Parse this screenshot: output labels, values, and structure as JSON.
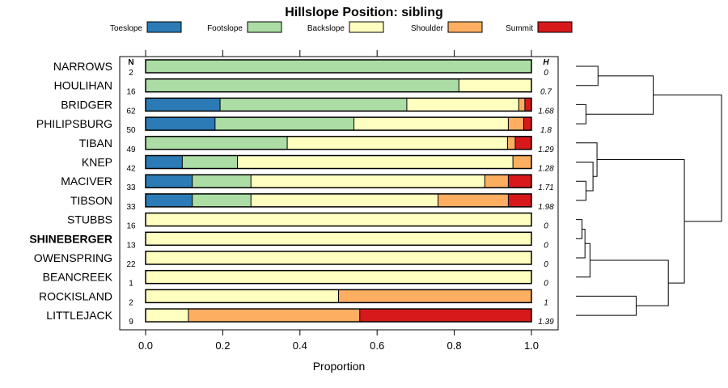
{
  "chart_data": {
    "type": "bar",
    "orientation": "horizontal",
    "stacked": true,
    "title": "Hillslope Position: sibling",
    "xlabel": "Proportion",
    "xlim": [
      0,
      1
    ],
    "xticks": [
      "0.0",
      "0.2",
      "0.4",
      "0.6",
      "0.8",
      "1.0"
    ],
    "n_header": "N",
    "h_header": "H",
    "highlight": "SHINEBERGER",
    "legend": [
      {
        "name": "Toeslope",
        "color": "#2c7bb6"
      },
      {
        "name": "Footslope",
        "color": "#abdda4"
      },
      {
        "name": "Backslope",
        "color": "#ffffbf"
      },
      {
        "name": "Shoulder",
        "color": "#fdae61"
      },
      {
        "name": "Summit",
        "color": "#d7191c"
      }
    ],
    "categories": [
      "NARROWS",
      "HOULIHAN",
      "BRIDGER",
      "PHILIPSBURG",
      "TIBAN",
      "KNEP",
      "MACIVER",
      "TIBSON",
      "STUBBS",
      "SHINEBERGER",
      "OWENSPRING",
      "BEANCREEK",
      "ROCKISLAND",
      "LITTLEJACK"
    ],
    "n": [
      "2",
      "16",
      "62",
      "50",
      "49",
      "42",
      "33",
      "33",
      "16",
      "13",
      "22",
      "1",
      "2",
      "9"
    ],
    "h": [
      "0",
      "0.7",
      "1.68",
      "1.8",
      "1.29",
      "1.28",
      "1.71",
      "1.98",
      "0",
      "0",
      "0",
      "0",
      "1",
      "1.39"
    ],
    "series": [
      {
        "name": "Toeslope",
        "values": [
          0,
          0,
          0.193,
          0.18,
          0,
          0.095,
          0.121,
          0.121,
          0,
          0,
          0,
          0,
          0,
          0
        ]
      },
      {
        "name": "Footslope",
        "values": [
          1,
          0.812,
          0.484,
          0.36,
          0.367,
          0.143,
          0.152,
          0.152,
          0,
          0,
          0,
          0,
          0,
          0
        ]
      },
      {
        "name": "Backslope",
        "values": [
          0,
          0.188,
          0.29,
          0.4,
          0.571,
          0.714,
          0.606,
          0.485,
          1,
          1,
          1,
          1,
          0.5,
          0.111
        ]
      },
      {
        "name": "Shoulder",
        "values": [
          0,
          0,
          0.016,
          0.04,
          0.02,
          0.048,
          0.061,
          0.182,
          0,
          0,
          0,
          0,
          0.5,
          0.444
        ]
      },
      {
        "name": "Summit",
        "values": [
          0,
          0,
          0.017,
          0.02,
          0.042,
          0,
          0.06,
          0.06,
          0,
          0,
          0,
          0,
          0,
          0.445
        ]
      }
    ],
    "dendrogram": {
      "leaf_order": [
        "NARROWS",
        "HOULIHAN",
        "BRIDGER",
        "PHILIPSBURG",
        "TIBAN",
        "KNEP",
        "MACIVER",
        "TIBSON",
        "STUBBS",
        "SHINEBERGER",
        "OWENSPRING",
        "BEANCREEK",
        "ROCKISLAND",
        "LITTLEJACK"
      ],
      "merges": [
        {
          "a": 0,
          "b": 1,
          "height": 0.22
        },
        {
          "a": 2,
          "b": 3,
          "height": 0.1
        },
        {
          "a": 14,
          "b": 15,
          "height": 0.77
        },
        {
          "a": 6,
          "b": 7,
          "height": 0.1
        },
        {
          "a": 5,
          "b": 17,
          "height": 0.17
        },
        {
          "a": 4,
          "b": 18,
          "height": 0.21
        },
        {
          "a": 8,
          "b": 9,
          "height": 0.06
        },
        {
          "a": 20,
          "b": 10,
          "height": 0.09
        },
        {
          "a": 21,
          "b": 11,
          "height": 0.14
        },
        {
          "a": 12,
          "b": 13,
          "height": 0.6
        },
        {
          "a": 22,
          "b": 23,
          "height": 0.92
        },
        {
          "a": 19,
          "b": 24,
          "height": 1.08
        },
        {
          "a": 16,
          "b": 25,
          "height": 1.45
        }
      ]
    }
  }
}
